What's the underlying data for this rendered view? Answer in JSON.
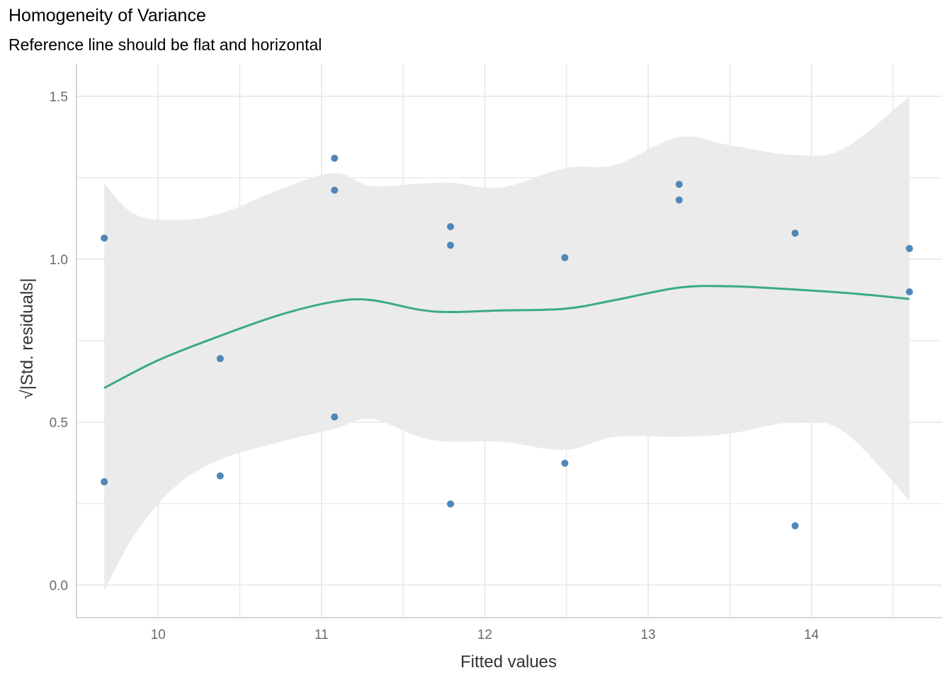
{
  "chart_data": {
    "type": "scatter",
    "title": "Homogeneity of Variance",
    "subtitle": "Reference line should be flat and horizontal",
    "xlabel": "Fitted values",
    "ylabel": "|Std. residuals|",
    "ylabel_prefix": "√",
    "xlim": [
      9.5,
      14.8
    ],
    "ylim": [
      -0.1,
      1.6
    ],
    "x_ticks": [
      10,
      11,
      12,
      13,
      14
    ],
    "y_ticks": [
      0.0,
      0.5,
      1.0,
      1.5
    ],
    "x_tick_labels": [
      "10",
      "11",
      "12",
      "13",
      "14"
    ],
    "y_tick_labels": [
      "0.0",
      "0.5",
      "1.0",
      "1.5"
    ],
    "grid": true,
    "points": [
      {
        "x": 9.67,
        "y": 1.065
      },
      {
        "x": 9.67,
        "y": 0.317
      },
      {
        "x": 10.38,
        "y": 0.695
      },
      {
        "x": 10.38,
        "y": 0.335
      },
      {
        "x": 11.08,
        "y": 1.31
      },
      {
        "x": 11.08,
        "y": 1.212
      },
      {
        "x": 11.08,
        "y": 0.516
      },
      {
        "x": 11.79,
        "y": 1.1
      },
      {
        "x": 11.79,
        "y": 1.043
      },
      {
        "x": 11.79,
        "y": 0.249
      },
      {
        "x": 12.49,
        "y": 1.005
      },
      {
        "x": 12.49,
        "y": 0.374
      },
      {
        "x": 13.19,
        "y": 1.23
      },
      {
        "x": 13.19,
        "y": 1.182
      },
      {
        "x": 13.9,
        "y": 1.08
      },
      {
        "x": 13.9,
        "y": 0.182
      },
      {
        "x": 14.6,
        "y": 1.033
      },
      {
        "x": 14.6,
        "y": 0.9
      }
    ],
    "smooth": [
      {
        "x": 9.67,
        "y": 0.605
      },
      {
        "x": 10.0,
        "y": 0.69
      },
      {
        "x": 10.38,
        "y": 0.765
      },
      {
        "x": 10.75,
        "y": 0.83
      },
      {
        "x": 11.08,
        "y": 0.87
      },
      {
        "x": 11.3,
        "y": 0.875
      },
      {
        "x": 11.6,
        "y": 0.845
      },
      {
        "x": 11.79,
        "y": 0.838
      },
      {
        "x": 12.1,
        "y": 0.843
      },
      {
        "x": 12.49,
        "y": 0.848
      },
      {
        "x": 12.8,
        "y": 0.875
      },
      {
        "x": 13.19,
        "y": 0.913
      },
      {
        "x": 13.5,
        "y": 0.917
      },
      {
        "x": 13.9,
        "y": 0.907
      },
      {
        "x": 14.3,
        "y": 0.893
      },
      {
        "x": 14.6,
        "y": 0.878
      }
    ],
    "band_upper": [
      {
        "x": 9.67,
        "y": 1.233
      },
      {
        "x": 9.85,
        "y": 1.14
      },
      {
        "x": 10.1,
        "y": 1.12
      },
      {
        "x": 10.38,
        "y": 1.14
      },
      {
        "x": 10.75,
        "y": 1.215
      },
      {
        "x": 11.08,
        "y": 1.265
      },
      {
        "x": 11.3,
        "y": 1.225
      },
      {
        "x": 11.6,
        "y": 1.232
      },
      {
        "x": 11.79,
        "y": 1.235
      },
      {
        "x": 12.1,
        "y": 1.22
      },
      {
        "x": 12.49,
        "y": 1.28
      },
      {
        "x": 12.8,
        "y": 1.29
      },
      {
        "x": 13.19,
        "y": 1.375
      },
      {
        "x": 13.5,
        "y": 1.35
      },
      {
        "x": 13.9,
        "y": 1.32
      },
      {
        "x": 14.2,
        "y": 1.34
      },
      {
        "x": 14.6,
        "y": 1.5
      }
    ],
    "band_lower": [
      {
        "x": 9.67,
        "y": -0.02
      },
      {
        "x": 9.85,
        "y": 0.15
      },
      {
        "x": 10.1,
        "y": 0.3
      },
      {
        "x": 10.38,
        "y": 0.385
      },
      {
        "x": 10.75,
        "y": 0.44
      },
      {
        "x": 11.08,
        "y": 0.48
      },
      {
        "x": 11.3,
        "y": 0.51
      },
      {
        "x": 11.6,
        "y": 0.455
      },
      {
        "x": 11.79,
        "y": 0.44
      },
      {
        "x": 12.1,
        "y": 0.44
      },
      {
        "x": 12.49,
        "y": 0.415
      },
      {
        "x": 12.8,
        "y": 0.455
      },
      {
        "x": 13.19,
        "y": 0.455
      },
      {
        "x": 13.5,
        "y": 0.465
      },
      {
        "x": 13.9,
        "y": 0.5
      },
      {
        "x": 14.2,
        "y": 0.47
      },
      {
        "x": 14.6,
        "y": 0.26
      }
    ],
    "colors": {
      "points": "#4f87b7",
      "smooth": "#3aaa85",
      "band": "#ebebeb",
      "grid": "#e6e6e6",
      "axis": "#cccccc"
    }
  }
}
